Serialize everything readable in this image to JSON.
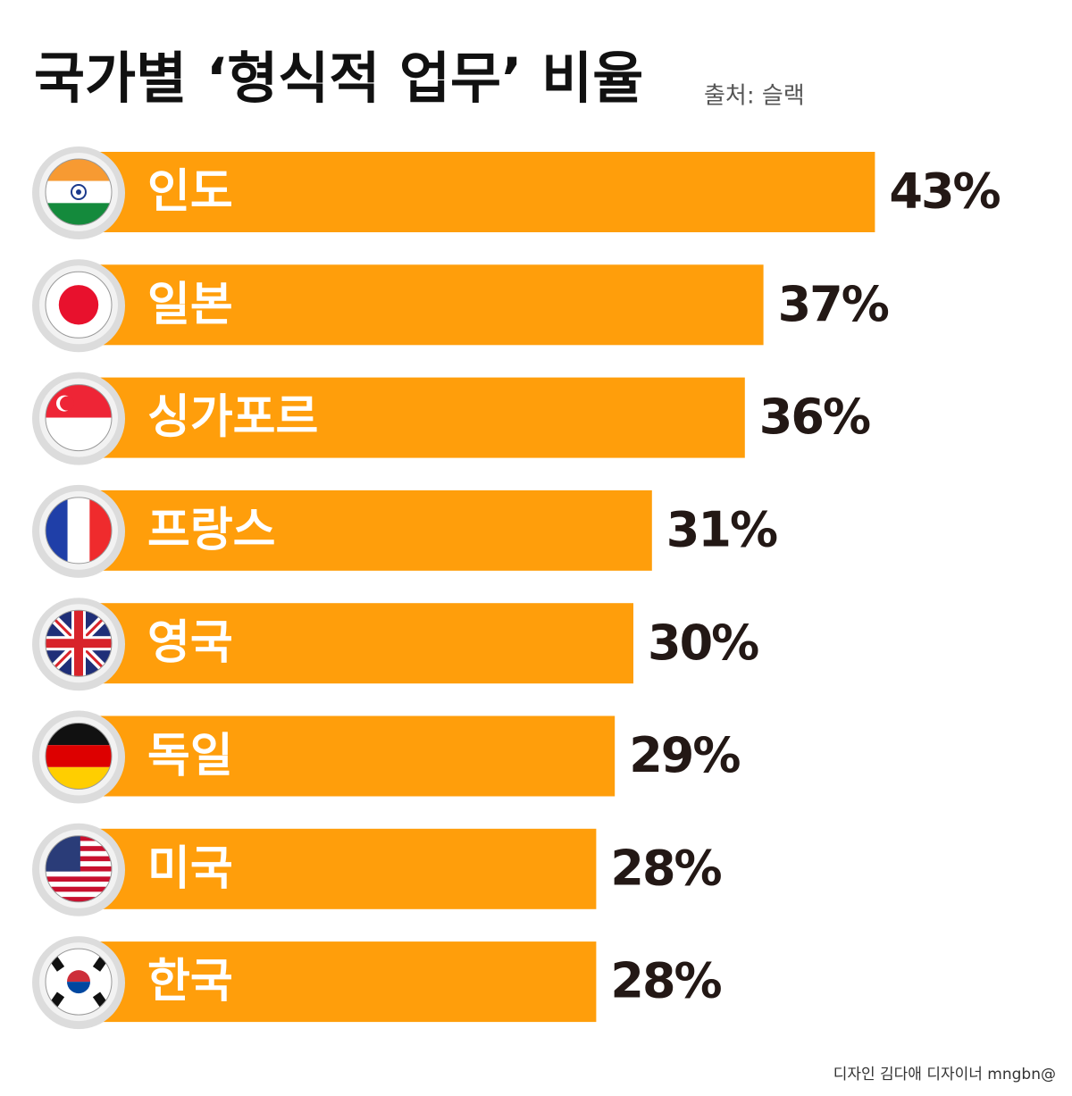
{
  "chart_data": {
    "type": "bar",
    "title": "국가별 ‘형식적 업무’ 비율",
    "source": "출처: 슬랙",
    "credit": "디자인 김다애 디자이너 mngbn@",
    "categories": [
      "인도",
      "일본",
      "싱가포르",
      "프랑스",
      "영국",
      "독일",
      "미국",
      "한국"
    ],
    "values": [
      43,
      37,
      36,
      31,
      30,
      29,
      28,
      28
    ],
    "value_labels": [
      "43%",
      "37%",
      "36%",
      "31%",
      "30%",
      "29%",
      "28%",
      "28%"
    ],
    "color": "#ff9e0b"
  }
}
